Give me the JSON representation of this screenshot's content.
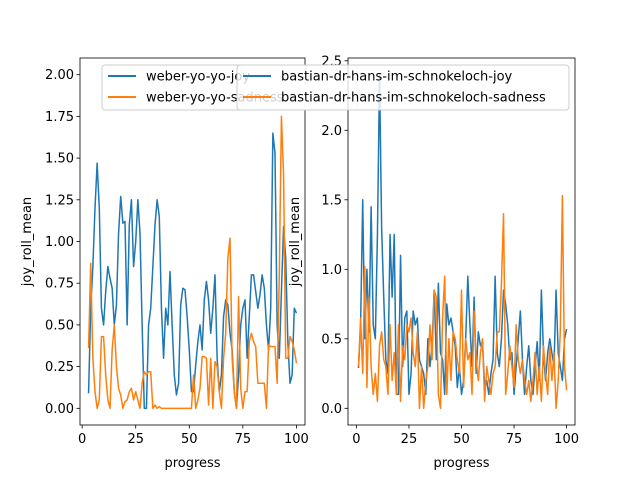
{
  "figure": {
    "background": "#ffffff"
  },
  "chart_data": [
    {
      "type": "line",
      "xlabel": "progress",
      "ylabel": "joy_roll_mean",
      "xlim": [
        -1,
        104
      ],
      "ylim": [
        -0.1,
        2.1
      ],
      "xticks": [
        0,
        25,
        50,
        75,
        100
      ],
      "xtick_labels": [
        "0",
        "25",
        "50",
        "75",
        "100"
      ],
      "yticks": [
        0.0,
        0.25,
        0.5,
        0.75,
        1.0,
        1.25,
        1.5,
        1.75,
        2.0
      ],
      "ytick_labels": [
        "0.00",
        "0.25",
        "0.50",
        "0.75",
        "1.00",
        "1.25",
        "1.50",
        "1.75",
        "2.00"
      ],
      "grid": false,
      "legend_position": "top",
      "series": [
        {
          "name": "weber-yo-yo-joy",
          "color": "#1f77b4",
          "x": [
            3,
            4,
            5,
            6,
            7,
            8,
            9,
            10,
            11,
            12,
            13,
            14,
            15,
            16,
            17,
            18,
            19,
            20,
            21,
            22,
            23,
            24,
            25,
            26,
            27,
            28,
            29,
            30,
            31,
            32,
            33,
            34,
            35,
            36,
            37,
            38,
            39,
            40,
            41,
            42,
            43,
            44,
            45,
            46,
            47,
            48,
            49,
            50,
            51,
            52,
            53,
            54,
            55,
            56,
            57,
            58,
            59,
            60,
            61,
            62,
            63,
            64,
            65,
            66,
            67,
            68,
            69,
            70,
            71,
            72,
            73,
            74,
            75,
            76,
            77,
            78,
            79,
            80,
            81,
            82,
            83,
            84,
            85,
            86,
            87,
            88,
            89,
            90,
            91,
            92,
            93,
            94,
            95,
            96,
            97,
            98,
            99,
            100
          ],
          "y": [
            0.09,
            0.6,
            0.85,
            1.2,
            1.47,
            1.2,
            0.6,
            0.5,
            0.7,
            0.85,
            0.78,
            0.72,
            0.5,
            0.62,
            1.05,
            1.27,
            1.11,
            1.12,
            0.5,
            1.1,
            1.25,
            0.85,
            1.0,
            1.25,
            1.05,
            0.5,
            0.0,
            0.0,
            0.5,
            0.6,
            0.85,
            1.1,
            1.25,
            1.15,
            0.6,
            0.3,
            0.6,
            0.5,
            0.82,
            0.5,
            0.2,
            0.08,
            0.15,
            0.62,
            0.72,
            0.71,
            0.55,
            0.35,
            0.1,
            0.1,
            0.26,
            0.4,
            0.5,
            0.35,
            0.65,
            0.76,
            0.65,
            0.45,
            0.6,
            0.8,
            0.3,
            0.1,
            0.2,
            0.55,
            0.65,
            0.62,
            0.45,
            0.35,
            0.1,
            0.0,
            0.2,
            0.5,
            0.6,
            0.65,
            0.3,
            0.55,
            0.8,
            0.8,
            0.7,
            0.6,
            0.68,
            0.8,
            0.72,
            0.5,
            0.35,
            0.6,
            1.65,
            1.53,
            0.5,
            0.3,
            0.7,
            1.09,
            0.9,
            0.4,
            0.15,
            0.2,
            0.6,
            0.57
          ]
        },
        {
          "name": "weber-yo-yo-sadness",
          "color": "#ff7f0e",
          "x": [
            3,
            4,
            5,
            6,
            7,
            8,
            9,
            10,
            11,
            12,
            13,
            14,
            15,
            16,
            17,
            18,
            19,
            20,
            21,
            22,
            23,
            24,
            25,
            26,
            27,
            28,
            29,
            30,
            31,
            32,
            33,
            34,
            35,
            36,
            37,
            38,
            39,
            40,
            41,
            42,
            43,
            44,
            45,
            46,
            47,
            48,
            49,
            50,
            51,
            52,
            53,
            54,
            55,
            56,
            57,
            58,
            59,
            60,
            61,
            62,
            63,
            64,
            65,
            66,
            67,
            68,
            69,
            70,
            71,
            72,
            73,
            74,
            75,
            76,
            77,
            78,
            79,
            80,
            81,
            82,
            83,
            84,
            85,
            86,
            87,
            88,
            89,
            90,
            91,
            92,
            93,
            94,
            95,
            96,
            97,
            98,
            99,
            100
          ],
          "y": [
            0.36,
            0.87,
            0.3,
            0.1,
            0.0,
            0.05,
            0.43,
            0.43,
            0.2,
            0.05,
            0.0,
            0.35,
            0.5,
            0.25,
            0.12,
            0.08,
            0.0,
            0.04,
            0.05,
            0.1,
            0.12,
            0.05,
            0.1,
            0.05,
            0.0,
            0.15,
            0.22,
            0.2,
            0.22,
            0.22,
            0.0,
            0.02,
            0.0,
            0.01,
            0.0,
            0.0,
            0.0,
            0.0,
            0.0,
            0.0,
            0.0,
            0.0,
            0.0,
            0.0,
            0.0,
            0.0,
            0.0,
            0.0,
            0.0,
            0.2,
            0.0,
            0.05,
            0.12,
            0.31,
            0.31,
            0.3,
            0.02,
            0.3,
            0.0,
            0.28,
            0.25,
            0.1,
            0.0,
            0.3,
            0.45,
            0.9,
            1.02,
            0.3,
            0.1,
            0.0,
            0.67,
            0.12,
            0.0,
            0.1,
            0.1,
            0.4,
            0.45,
            0.4,
            0.37,
            0.15,
            0.15,
            0.15,
            0.15,
            0.0,
            0.38,
            0.37,
            0.37,
            0.37,
            0.15,
            0.8,
            1.75,
            1.4,
            0.3,
            0.3,
            0.43,
            0.4,
            0.35,
            0.27
          ]
        }
      ]
    },
    {
      "type": "line",
      "xlabel": "progress",
      "ylabel": "joy_roll_mean",
      "xlim": [
        -4,
        104
      ],
      "ylim": [
        -0.12,
        2.52
      ],
      "xticks": [
        0,
        25,
        50,
        75,
        100
      ],
      "xtick_labels": [
        "0",
        "25",
        "50",
        "75",
        "100"
      ],
      "yticks": [
        0.0,
        0.5,
        1.0,
        1.5,
        2.0,
        2.5
      ],
      "ytick_labels": [
        "0.0",
        "0.5",
        "1.0",
        "1.5",
        "2.0",
        "2.5"
      ],
      "grid": false,
      "legend_position": "top",
      "series": [
        {
          "name": "bastian-dr-hans-im-schnokeloch-joy",
          "color": "#1f77b4",
          "x": [
            1,
            2,
            3,
            4,
            5,
            6,
            7,
            8,
            9,
            10,
            11,
            12,
            13,
            14,
            15,
            16,
            17,
            18,
            19,
            20,
            21,
            22,
            23,
            24,
            25,
            26,
            27,
            28,
            29,
            30,
            31,
            32,
            33,
            34,
            35,
            36,
            37,
            38,
            39,
            40,
            41,
            42,
            43,
            44,
            45,
            46,
            47,
            48,
            49,
            50,
            51,
            52,
            53,
            54,
            55,
            56,
            57,
            58,
            59,
            60,
            61,
            62,
            63,
            64,
            65,
            66,
            67,
            68,
            69,
            70,
            71,
            72,
            73,
            74,
            75,
            76,
            77,
            78,
            79,
            80,
            81,
            82,
            83,
            84,
            85,
            86,
            87,
            88,
            89,
            90,
            91,
            92,
            93,
            94,
            95,
            96,
            97,
            98,
            99,
            100
          ],
          "y": [
            0.29,
            0.6,
            1.5,
            0.5,
            1.0,
            0.55,
            1.45,
            0.6,
            0.5,
            1.25,
            2.4,
            1.3,
            0.8,
            0.35,
            0.25,
            1.25,
            0.8,
            1.25,
            0.1,
            0.1,
            1.1,
            0.3,
            0.65,
            0.7,
            0.1,
            0.25,
            0.7,
            0.6,
            0.65,
            0.35,
            0.3,
            0.25,
            0.1,
            0.5,
            0.3,
            0.45,
            0.85,
            0.35,
            0.9,
            0.4,
            0.35,
            0.1,
            0.75,
            0.6,
            0.65,
            0.55,
            0.45,
            0.15,
            0.3,
            0.1,
            0.2,
            0.5,
            0.95,
            0.6,
            0.3,
            0.8,
            0.25,
            0.55,
            0.45,
            0.48,
            0.15,
            0.2,
            0.1,
            0.25,
            0.35,
            0.95,
            0.4,
            0.3,
            0.5,
            0.85,
            0.75,
            0.6,
            0.35,
            0.4,
            0.1,
            0.3,
            0.5,
            0.7,
            0.35,
            0.1,
            0.3,
            0.45,
            0.2,
            0.1,
            0.3,
            0.48,
            0.2,
            0.85,
            0.4,
            0.2,
            0.4,
            0.5,
            0.4,
            0.3,
            0.85,
            0.4,
            0.3,
            0.2,
            0.5,
            0.57
          ]
        },
        {
          "name": "bastian-dr-hans-im-schnokeloch-sadness",
          "color": "#ff7f0e",
          "x": [
            1,
            2,
            3,
            4,
            5,
            6,
            7,
            8,
            9,
            10,
            11,
            12,
            13,
            14,
            15,
            16,
            17,
            18,
            19,
            20,
            21,
            22,
            23,
            24,
            25,
            26,
            27,
            28,
            29,
            30,
            31,
            32,
            33,
            34,
            35,
            36,
            37,
            38,
            39,
            40,
            41,
            42,
            43,
            44,
            45,
            46,
            47,
            48,
            49,
            50,
            51,
            52,
            53,
            54,
            55,
            56,
            57,
            58,
            59,
            60,
            61,
            62,
            63,
            64,
            65,
            66,
            67,
            68,
            69,
            70,
            71,
            72,
            73,
            74,
            75,
            76,
            77,
            78,
            79,
            80,
            81,
            82,
            83,
            84,
            85,
            86,
            87,
            88,
            89,
            90,
            91,
            92,
            93,
            94,
            95,
            96,
            97,
            98,
            99,
            100
          ],
          "y": [
            0.3,
            0.65,
            0.25,
            1.02,
            0.15,
            0.8,
            0.3,
            0.1,
            0.25,
            0.05,
            0.45,
            0.55,
            0.35,
            0.3,
            0.1,
            0.6,
            0.2,
            0.4,
            0.1,
            0.6,
            0.05,
            0.45,
            0.35,
            0.6,
            0.55,
            0.65,
            0.4,
            0.3,
            0.55,
            0.0,
            0.3,
            0.0,
            0.2,
            0.3,
            0.6,
            0.35,
            0.85,
            0.8,
            0.1,
            0.0,
            0.65,
            0.95,
            0.1,
            0.5,
            0.2,
            0.55,
            0.5,
            0.35,
            0.25,
            0.85,
            0.15,
            0.5,
            0.35,
            0.4,
            0.1,
            0.7,
            0.35,
            0.2,
            0.4,
            0.5,
            0.05,
            0.3,
            0.2,
            0.1,
            0.25,
            0.3,
            0.55,
            0.55,
            0.9,
            1.4,
            0.1,
            0.25,
            0.45,
            0.3,
            0.15,
            0.6,
            0.35,
            0.25,
            0.35,
            0.2,
            0.1,
            0.2,
            0.05,
            0.2,
            0.4,
            0.1,
            0.3,
            0.05,
            0.45,
            0.25,
            0.1,
            0.45,
            0.2,
            0.4,
            0.0,
            0.2,
            0.55,
            1.53,
            0.3,
            0.13
          ]
        }
      ]
    }
  ]
}
